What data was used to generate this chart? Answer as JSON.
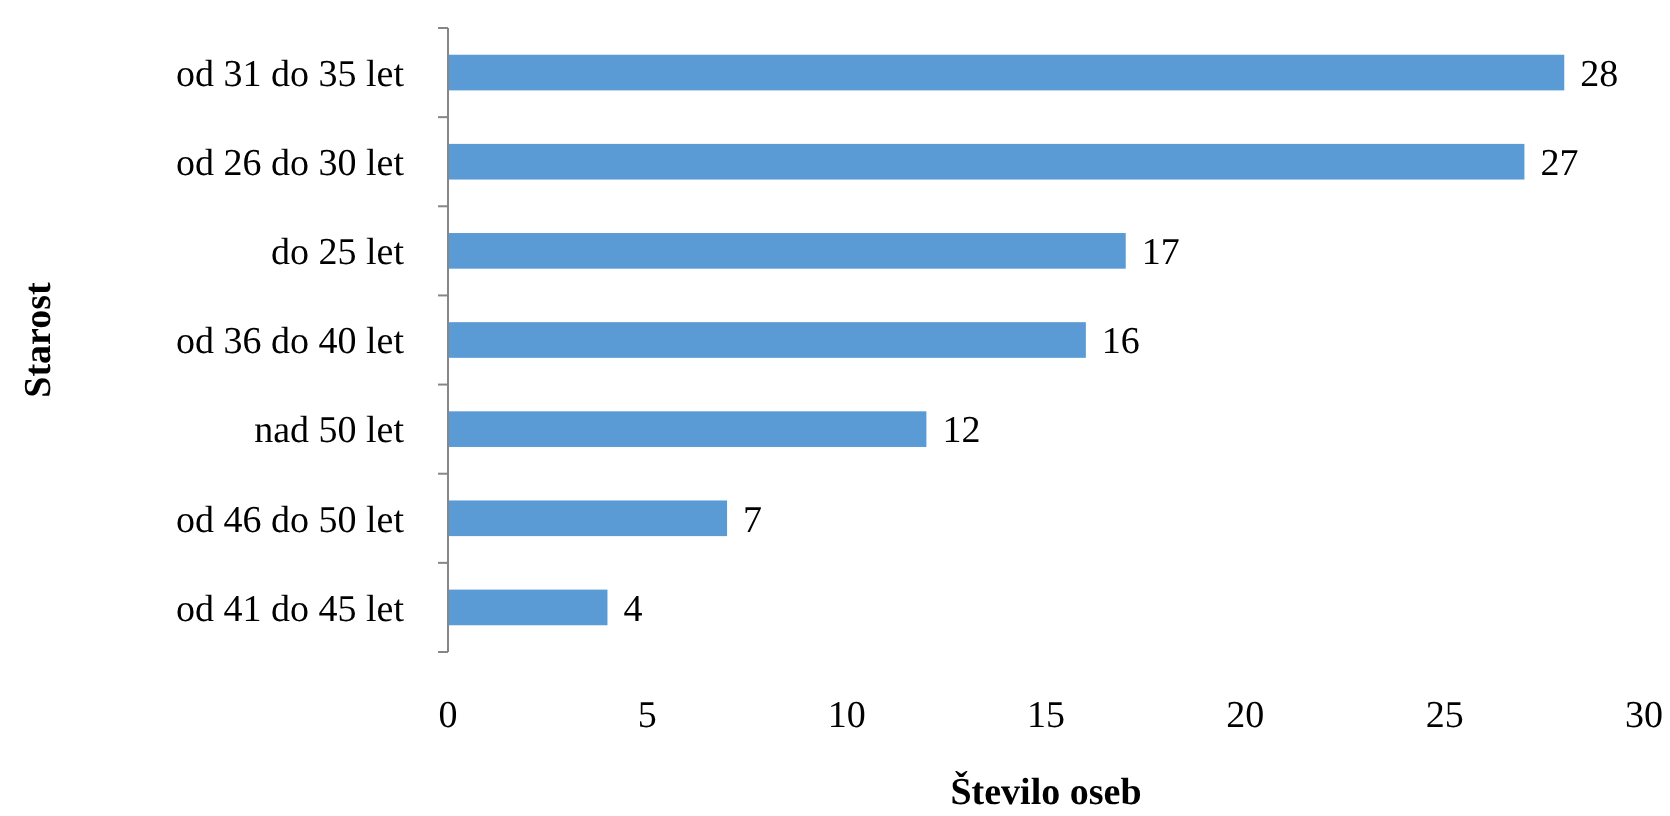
{
  "chart_data": {
    "type": "bar",
    "orientation": "horizontal",
    "xlabel": "Število oseb",
    "ylabel": "Starost",
    "categories": [
      "od 31 do 35 let",
      "od 26 do 30 let",
      "do 25 let",
      "od 36 do 40 let",
      "nad 50 let",
      "od 46 do 50 let",
      "od 41 do 45 let"
    ],
    "values": [
      28,
      27,
      17,
      16,
      12,
      7,
      4
    ],
    "color": "#5b9bd5",
    "xlim": [
      0,
      30
    ],
    "xticks": [
      0,
      5,
      10,
      15,
      20,
      25,
      30
    ],
    "data_labels": true
  }
}
